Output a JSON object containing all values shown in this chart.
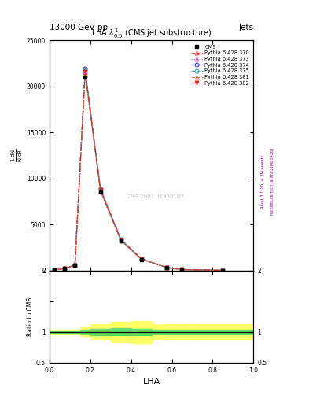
{
  "top_left": "13000 GeV pp",
  "top_right": "Jets",
  "plot_title": "LHA $\\lambda^1_{0.5}$ (CMS jet substructure)",
  "xlabel": "LHA",
  "ylabel_main": "$\\frac{1}{\\mathrm{N}} \\frac{\\mathrm{dN}}{\\mathrm{d}\\lambda}$",
  "ylabel_ratio": "Ratio to CMS",
  "right_label1": "Rivet 3.1.10, ≥ 3M events",
  "right_label2": "mcplots.cern.ch [arXiv:1306.3436]",
  "watermark": "CMS 2021  I1920187",
  "xlim": [
    0,
    1
  ],
  "ylim_main": [
    0,
    25000
  ],
  "ylim_ratio": [
    0.5,
    2.0
  ],
  "yticks_main": [
    0,
    5000,
    10000,
    15000,
    20000,
    25000
  ],
  "ytick_labels_main": [
    "0",
    "5000",
    "10000",
    "15000",
    "20000",
    "25000"
  ],
  "yticks_ratio": [
    0.5,
    1.0,
    1.5,
    2.0
  ],
  "ytick_labels_ratio": [
    "0.5",
    "1",
    "",
    "2"
  ],
  "cms_x": [
    0.025,
    0.075,
    0.125,
    0.175,
    0.25,
    0.35,
    0.45,
    0.575,
    0.65,
    0.85
  ],
  "cms_y": [
    100,
    200,
    600,
    21000,
    8500,
    3200,
    1200,
    300,
    100,
    20
  ],
  "series_x": [
    0.025,
    0.075,
    0.125,
    0.175,
    0.25,
    0.35,
    0.45,
    0.575,
    0.65,
    0.85
  ],
  "series_y_base": [
    100,
    200,
    600,
    21500,
    8700,
    3300,
    1250,
    320,
    110,
    22
  ],
  "series": [
    {
      "label": "Pythia 6.428 370",
      "color": "#e8534a",
      "linestyle": "--",
      "marker": "^",
      "mfc": "none",
      "dy": [
        0,
        0,
        0,
        0,
        0,
        0,
        0,
        0,
        0,
        0
      ]
    },
    {
      "label": "Pythia 6.428 373",
      "color": "#cc66cc",
      "linestyle": ":",
      "marker": "^",
      "mfc": "none",
      "dy": [
        0,
        0,
        0,
        200,
        100,
        50,
        20,
        5,
        2,
        1
      ]
    },
    {
      "label": "Pythia 6.428 374",
      "color": "#4444cc",
      "linestyle": "--",
      "marker": "o",
      "mfc": "none",
      "dy": [
        0,
        0,
        0,
        400,
        200,
        100,
        50,
        10,
        5,
        2
      ]
    },
    {
      "label": "Pythia 6.428 375",
      "color": "#44aaaa",
      "linestyle": "--",
      "marker": "o",
      "mfc": "none",
      "dy": [
        0,
        0,
        0,
        300,
        150,
        75,
        30,
        8,
        3,
        1
      ]
    },
    {
      "label": "Pythia 6.428 381",
      "color": "#cc8844",
      "linestyle": "--",
      "marker": "^",
      "mfc": "none",
      "dy": [
        0,
        0,
        0,
        -200,
        -100,
        -50,
        -20,
        -5,
        -2,
        -1
      ]
    },
    {
      "label": "Pythia 6.428 382",
      "color": "#cc3333",
      "linestyle": "-.",
      "marker": "v",
      "mfc": "#cc3333",
      "dy": [
        0,
        0,
        0,
        100,
        50,
        25,
        10,
        3,
        1,
        0
      ]
    }
  ],
  "ratio_bin_edges": [
    0.0,
    0.05,
    0.1,
    0.15,
    0.2,
    0.3,
    0.4,
    0.5,
    0.6,
    0.7,
    1.0
  ],
  "ratio_yellow_lo": [
    0.97,
    0.97,
    0.97,
    0.93,
    0.88,
    0.83,
    0.82,
    0.88,
    0.88,
    0.88
  ],
  "ratio_yellow_hi": [
    1.03,
    1.03,
    1.03,
    1.07,
    1.12,
    1.17,
    1.18,
    1.12,
    1.12,
    1.12
  ],
  "ratio_green_lo": [
    0.99,
    0.99,
    0.99,
    0.97,
    0.95,
    0.94,
    0.95,
    0.97,
    0.97,
    0.97
  ],
  "ratio_green_hi": [
    1.01,
    1.01,
    1.01,
    1.03,
    1.05,
    1.06,
    1.05,
    1.03,
    1.03,
    1.03
  ]
}
